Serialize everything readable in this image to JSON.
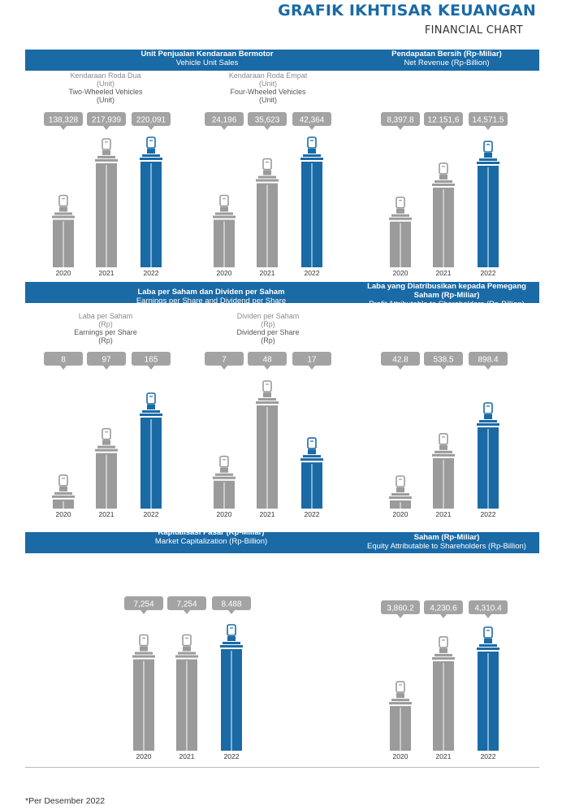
{
  "header": {
    "title": "GRAFIK IKHTISAR KEUANGAN",
    "subtitle": "FINANCIAL CHART"
  },
  "footnote": "*Per Desember 2022",
  "chart_data": [
    {
      "type": "bar",
      "title": "Unit Penjualan Kendaraan Bermotor",
      "subtitle": "Vehicle Unit Sales",
      "label_id": "Kendaraan Roda Dua",
      "unit_id": "(Unit)",
      "label_en": "Two-Wheeled Vehicles",
      "unit_en": "(Unit)",
      "categories": [
        "2020",
        "2021",
        "2022"
      ],
      "values": [
        138328,
        217939,
        220091
      ],
      "labels": [
        "138,328",
        "217,939",
        "220,091"
      ]
    },
    {
      "type": "bar",
      "title": "",
      "subtitle": "",
      "label_id": "Kendaraan Roda Empat",
      "unit_id": "(Unit)",
      "label_en": "Four-Wheeled Vehicles",
      "unit_en": "(Unit)",
      "categories": [
        "2020",
        "2021",
        "2022"
      ],
      "values": [
        24196,
        35623,
        42364
      ],
      "labels": [
        "24,196",
        "35,623",
        "42,364"
      ]
    },
    {
      "type": "bar",
      "title": "Pendapatan Bersih (Rp-Miliar)",
      "subtitle": "Net Revenue (Rp-Billion)",
      "categories": [
        "2020",
        "2021",
        "2022"
      ],
      "values": [
        8397.8,
        12151.6,
        14571.5
      ],
      "labels": [
        "8,397.8",
        "12.151,6",
        "14,571.5"
      ]
    },
    {
      "type": "bar",
      "title": "Laba per Saham dan Dividen per Saham",
      "subtitle": "Earnings per Share and Dividend per Share",
      "label_id": "Laba per Saham",
      "unit_id": "(Rp)",
      "label_en": "Earnings per Share",
      "unit_en": "(Rp)",
      "categories": [
        "2020",
        "2021",
        "2022"
      ],
      "values": [
        8,
        97,
        165
      ],
      "labels": [
        "8",
        "97",
        "165"
      ]
    },
    {
      "type": "bar",
      "title": "",
      "subtitle": "",
      "label_id": "Dividen per Saham",
      "unit_id": "(Rp)",
      "label_en": "Dividend per Share",
      "unit_en": "(Rp)",
      "categories": [
        "2020",
        "2021",
        "2022"
      ],
      "values": [
        7,
        48,
        17
      ],
      "labels": [
        "7",
        "48",
        "17"
      ]
    },
    {
      "type": "bar",
      "title": "Laba yang Diatribusikan kepada Pemegang Saham (Rp-Miliar)",
      "subtitle": "Profit Attributable to Shareholders (Rp-Billion)",
      "categories": [
        "2020",
        "2021",
        "2022"
      ],
      "values": [
        42.8,
        538.5,
        898.4
      ],
      "labels": [
        "42.8",
        "538.5",
        "898.4"
      ]
    },
    {
      "type": "bar",
      "title": "Kapitalisasi Pasar (Rp-Miliar)",
      "subtitle": "Market Capitalization (Rp-Billion)",
      "categories": [
        "2020",
        "2021",
        "2022"
      ],
      "values": [
        7254,
        7254,
        8488
      ],
      "labels": [
        "7,254",
        "7,254",
        "8.488"
      ]
    },
    {
      "type": "bar",
      "title": "Ekuitas yang Diatribusikan kepada Pemegang Saham (Rp-Miliar)",
      "subtitle": "Equity Attributable to Shareholders (Rp-Billion)",
      "categories": [
        "2020",
        "2021",
        "2022"
      ],
      "values": [
        3860.2,
        4230.6,
        4310.4
      ],
      "labels": [
        "3,860.2",
        "4,230.6",
        "4,310.4"
      ]
    }
  ],
  "colors": {
    "accent": "#1a6aa6",
    "bar_gray": "#9b9b9b",
    "bar_blue": "#1a6aa6",
    "callout": "#a3a3a3"
  }
}
